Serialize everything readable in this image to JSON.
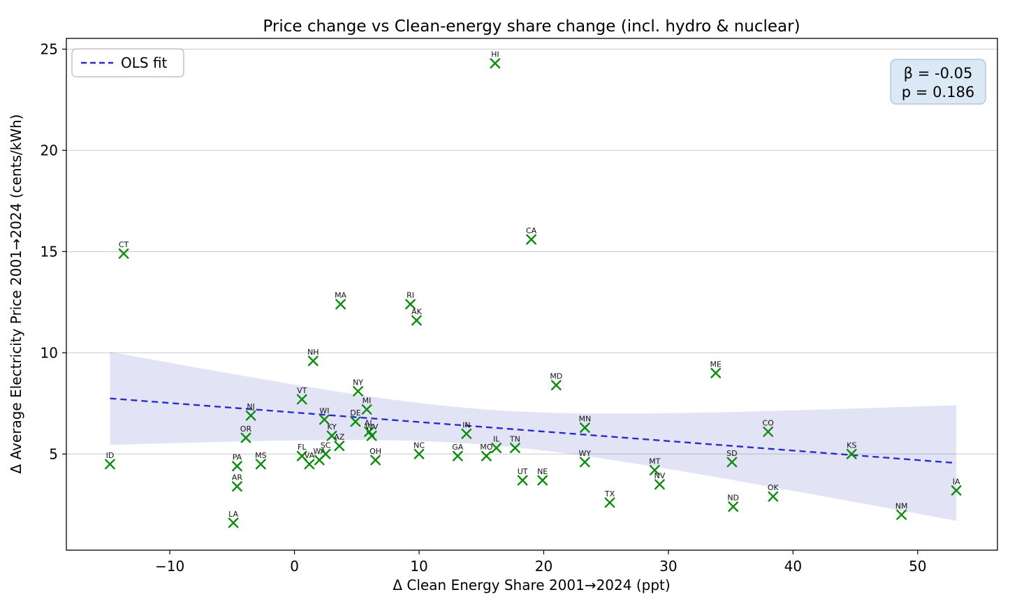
{
  "title": "Price change vs Clean-energy share change (incl. hydro & nuclear)",
  "legend": {
    "ols_label": "OLS fit"
  },
  "stats_box": {
    "line1": "β = -0.05",
    "line2": "p = 0.186"
  },
  "colors": {
    "marker": "#0c8c0c",
    "ols_line": "#2b2bcd",
    "band_fill": "rgba(100,100,205,0.18)",
    "grid": "#c9c9c9",
    "stats_bg": "#dbe9f6",
    "stats_border": "#a8bfd0",
    "legend_border": "#b5b5b5",
    "spine": "#000000"
  },
  "chart_data": {
    "type": "scatter",
    "title": "Price change vs Clean-energy share change (incl. hydro & nuclear)",
    "xlabel": "Δ Clean Energy Share 2001→2024 (ppt)",
    "ylabel": "Δ Average Electricity Price 2001→2024 (cents/kWh)",
    "xlim": [
      -18.3,
      56.4
    ],
    "ylim": [
      0.25,
      25.53
    ],
    "xticks": [
      -10,
      0,
      10,
      20,
      30,
      40,
      50
    ],
    "yticks": [
      5,
      10,
      15,
      20,
      25
    ],
    "grid": "horizontal-only",
    "legend_position": "upper-left",
    "marker": "x",
    "points": [
      {
        "state": "ID",
        "x": -14.8,
        "y": 4.5
      },
      {
        "state": "CT",
        "x": -13.7,
        "y": 14.9
      },
      {
        "state": "LA",
        "x": -4.9,
        "y": 1.6
      },
      {
        "state": "AR",
        "x": -4.6,
        "y": 3.4
      },
      {
        "state": "PA",
        "x": -4.6,
        "y": 4.4
      },
      {
        "state": "OR",
        "x": -3.9,
        "y": 5.8
      },
      {
        "state": "NJ",
        "x": -3.5,
        "y": 6.9
      },
      {
        "state": "MS",
        "x": -2.7,
        "y": 4.5
      },
      {
        "state": "VT",
        "x": 0.6,
        "y": 7.7
      },
      {
        "state": "FL",
        "x": 0.6,
        "y": 4.9
      },
      {
        "state": "VA",
        "x": 1.2,
        "y": 4.5
      },
      {
        "state": "NH",
        "x": 1.5,
        "y": 9.6
      },
      {
        "state": "WA",
        "x": 2.0,
        "y": 4.7
      },
      {
        "state": "WI",
        "x": 2.4,
        "y": 6.7
      },
      {
        "state": "SC",
        "x": 2.5,
        "y": 5.0
      },
      {
        "state": "KY",
        "x": 3.0,
        "y": 5.9
      },
      {
        "state": "AZ",
        "x": 3.6,
        "y": 5.4
      },
      {
        "state": "MA",
        "x": 3.7,
        "y": 12.4
      },
      {
        "state": "DE",
        "x": 4.9,
        "y": 6.6
      },
      {
        "state": "NY",
        "x": 5.1,
        "y": 8.1
      },
      {
        "state": "MI",
        "x": 5.8,
        "y": 7.2
      },
      {
        "state": "AL",
        "x": 6.0,
        "y": 6.1
      },
      {
        "state": "WV",
        "x": 6.2,
        "y": 5.9
      },
      {
        "state": "OH",
        "x": 6.5,
        "y": 4.7
      },
      {
        "state": "RI",
        "x": 9.3,
        "y": 12.4
      },
      {
        "state": "AK",
        "x": 9.8,
        "y": 11.6
      },
      {
        "state": "NC",
        "x": 10.0,
        "y": 5.0
      },
      {
        "state": "GA",
        "x": 13.1,
        "y": 4.9
      },
      {
        "state": "IN",
        "x": 13.8,
        "y": 6.0
      },
      {
        "state": "MO",
        "x": 15.4,
        "y": 4.9
      },
      {
        "state": "HI",
        "x": 16.1,
        "y": 24.3
      },
      {
        "state": "IL",
        "x": 16.2,
        "y": 5.3
      },
      {
        "state": "TN",
        "x": 17.7,
        "y": 5.3
      },
      {
        "state": "UT",
        "x": 18.3,
        "y": 3.7
      },
      {
        "state": "CA",
        "x": 19.0,
        "y": 15.6
      },
      {
        "state": "NE",
        "x": 19.9,
        "y": 3.7
      },
      {
        "state": "MD",
        "x": 21.0,
        "y": 8.4
      },
      {
        "state": "MN",
        "x": 23.3,
        "y": 6.3
      },
      {
        "state": "WY",
        "x": 23.3,
        "y": 4.6
      },
      {
        "state": "TX",
        "x": 25.3,
        "y": 2.6
      },
      {
        "state": "MT",
        "x": 28.9,
        "y": 4.2
      },
      {
        "state": "NV",
        "x": 29.3,
        "y": 3.5
      },
      {
        "state": "ME",
        "x": 33.8,
        "y": 9.0
      },
      {
        "state": "SD",
        "x": 35.1,
        "y": 4.6
      },
      {
        "state": "ND",
        "x": 35.2,
        "y": 2.4
      },
      {
        "state": "CO",
        "x": 38.0,
        "y": 6.1
      },
      {
        "state": "OK",
        "x": 38.4,
        "y": 2.9
      },
      {
        "state": "KS",
        "x": 44.7,
        "y": 5.0
      },
      {
        "state": "NM",
        "x": 48.7,
        "y": 2.0
      },
      {
        "state": "IA",
        "x": 53.1,
        "y": 3.2
      }
    ],
    "regression": {
      "beta": -0.05,
      "p_value": 0.186,
      "slope": -0.047,
      "intercept": 7.05,
      "x_start": -14.8,
      "x_end": 53.1,
      "band_center_x": 15,
      "band_min_halfwidth": 0.87,
      "band_curvature": 0.0051
    }
  }
}
